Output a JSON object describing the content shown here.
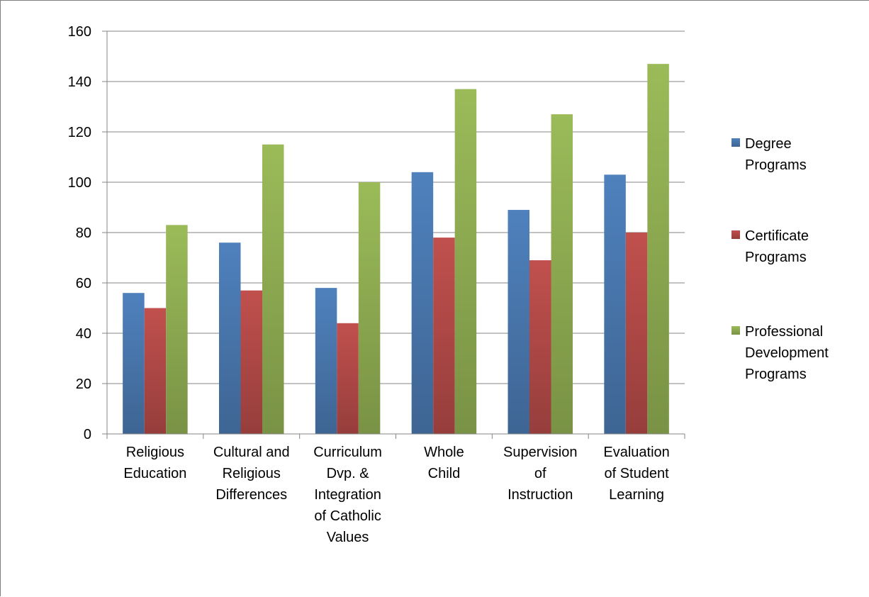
{
  "chart_data": {
    "type": "bar",
    "title": "",
    "xlabel": "",
    "ylabel": "",
    "ylim": [
      0,
      160
    ],
    "ytick_step": 20,
    "yticks": [
      "0",
      "20",
      "40",
      "60",
      "80",
      "100",
      "120",
      "140",
      "160"
    ],
    "grid": true,
    "legend_position": "right",
    "categories": [
      [
        "Religious",
        "Education"
      ],
      [
        "Cultural and",
        "Religious",
        "Differences"
      ],
      [
        "Curriculum",
        "Dvp. &",
        "Integration",
        "of Catholic",
        "Values"
      ],
      [
        "Whole",
        "Child"
      ],
      [
        "Supervision",
        "of",
        "Instruction"
      ],
      [
        "Evaluation",
        "of Student",
        "Learning"
      ]
    ],
    "series": [
      {
        "name": [
          "Degree",
          "Programs"
        ],
        "color": "#4f81bd",
        "values": [
          56,
          76,
          58,
          104,
          89,
          103
        ]
      },
      {
        "name": [
          "Certificate",
          "Programs"
        ],
        "color": "#c0504d",
        "values": [
          50,
          57,
          44,
          78,
          69,
          80
        ]
      },
      {
        "name": [
          "Professional",
          "Development",
          "Programs"
        ],
        "color": "#9bbb59",
        "values": [
          83,
          115,
          100,
          137,
          127,
          147
        ]
      }
    ]
  }
}
